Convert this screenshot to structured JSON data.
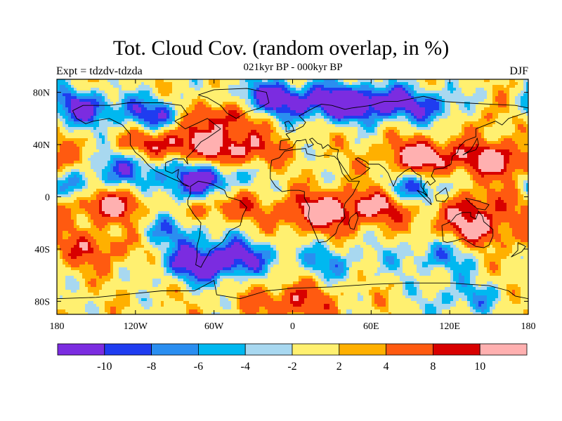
{
  "title": "Tot. Cloud Cov. (random overlap, in %)",
  "subtitle": "021kyr BP - 000kyr BP",
  "experiment_label": "Expt = tdzdv-tdzda",
  "season_label": "DJF",
  "colors": {
    "bins": [
      "#7b2ce0",
      "#1f3cf0",
      "#2a8ef0",
      "#00b8f0",
      "#a8d8f0",
      "#fff070",
      "#ffb000",
      "#ff5a10",
      "#d80000",
      "#ffb0b0"
    ],
    "land_outline": "#000000",
    "frame": "#000000"
  },
  "chart_data": {
    "type": "heatmap",
    "variable": "Total cloud cover difference (random overlap)",
    "units": "%",
    "x_ticks": [
      -180,
      -120,
      -60,
      0,
      60,
      120,
      180
    ],
    "x_tick_labels": [
      "180",
      "120W",
      "60W",
      "0",
      "60E",
      "120E",
      "180"
    ],
    "y_ticks": [
      80,
      40,
      0,
      -40,
      -80
    ],
    "y_tick_labels": [
      "80N",
      "40N",
      "0",
      "40S",
      "80S"
    ],
    "xlim": [
      -180,
      180
    ],
    "ylim": [
      -90,
      90
    ],
    "colorbar": {
      "levels": [
        -10,
        -8,
        -6,
        -4,
        -2,
        2,
        4,
        8,
        10
      ],
      "labels": [
        "-10",
        "-8",
        "-6",
        "-4",
        "-2",
        "2",
        "4",
        "8",
        "10"
      ]
    },
    "features": [
      {
        "lon": -100,
        "lat": 62,
        "value": -12
      },
      {
        "lon": -165,
        "lat": 68,
        "value": -12
      },
      {
        "lon": -60,
        "lat": 62,
        "value": 12
      },
      {
        "lon": -20,
        "lat": 75,
        "value": -12
      },
      {
        "lon": 30,
        "lat": 72,
        "value": -12
      },
      {
        "lon": 70,
        "lat": 72,
        "value": -11
      },
      {
        "lon": 120,
        "lat": 68,
        "value": -9
      },
      {
        "lon": 150,
        "lat": 65,
        "value": 8
      },
      {
        "lon": -100,
        "lat": 40,
        "value": 12
      },
      {
        "lon": -45,
        "lat": 35,
        "value": 12
      },
      {
        "lon": 100,
        "lat": 30,
        "value": 12
      },
      {
        "lon": 160,
        "lat": 28,
        "value": 11
      },
      {
        "lon": -120,
        "lat": 25,
        "value": -9
      },
      {
        "lon": -60,
        "lat": 18,
        "value": -9
      },
      {
        "lon": -160,
        "lat": 8,
        "value": -8
      },
      {
        "lon": -140,
        "lat": -5,
        "value": 12
      },
      {
        "lon": -60,
        "lat": -5,
        "value": 12
      },
      {
        "lon": -75,
        "lat": 3,
        "value": -12
      },
      {
        "lon": 20,
        "lat": -12,
        "value": 12
      },
      {
        "lon": 70,
        "lat": -5,
        "value": 11
      },
      {
        "lon": 95,
        "lat": 5,
        "value": -12
      },
      {
        "lon": 140,
        "lat": -5,
        "value": 8
      },
      {
        "lon": 140,
        "lat": -25,
        "value": 9
      },
      {
        "lon": -90,
        "lat": -25,
        "value": -7
      },
      {
        "lon": -40,
        "lat": -45,
        "value": -8
      },
      {
        "lon": 30,
        "lat": -50,
        "value": -6
      },
      {
        "lon": 110,
        "lat": -45,
        "value": -7
      },
      {
        "lon": -70,
        "lat": -52,
        "value": -12
      },
      {
        "lon": -150,
        "lat": -40,
        "value": 7
      },
      {
        "lon": 0,
        "lat": -80,
        "value": 8
      },
      {
        "lon": 130,
        "lat": -78,
        "value": -6
      }
    ]
  }
}
